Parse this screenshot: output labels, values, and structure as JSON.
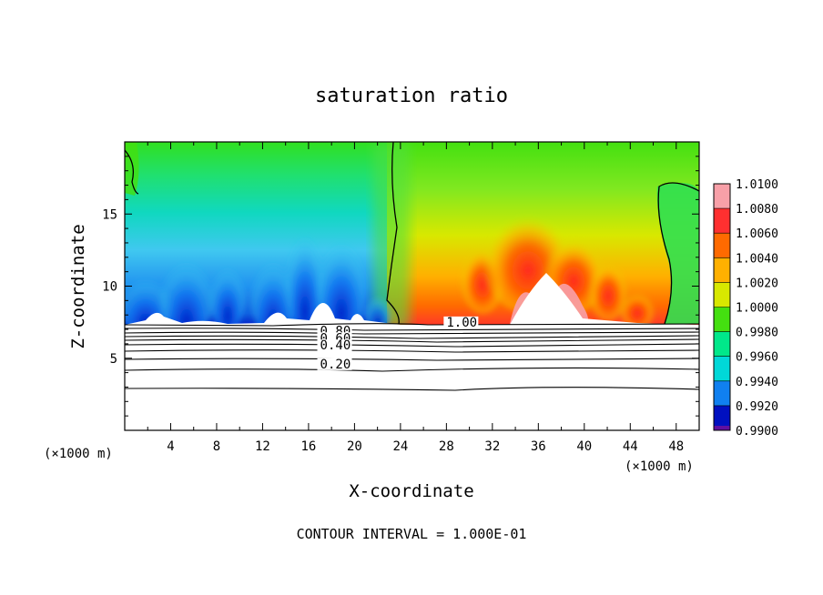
{
  "chart_data": {
    "type": "heatmap",
    "title": "saturation ratio",
    "xlabel": "X-coordinate",
    "ylabel": "Z-coordinate",
    "x_unit_left": "(×1000 m)",
    "x_unit_right": "(×1000 m)",
    "xlim": [
      0,
      50
    ],
    "ylim": [
      0,
      20
    ],
    "x_ticks": [
      4,
      8,
      12,
      16,
      20,
      24,
      28,
      32,
      36,
      40,
      44,
      48
    ],
    "y_ticks": [
      5,
      10,
      15
    ],
    "footer": "CONTOUR INTERVAL = 1.000E-01",
    "colorbar": {
      "levels": [
        "1.0100",
        "1.0080",
        "1.0060",
        "1.0040",
        "1.0020",
        "1.0000",
        "0.9980",
        "0.9960",
        "0.9940",
        "0.9920",
        "0.9900"
      ],
      "colors": [
        "#f8a0a8",
        "#ff3030",
        "#ff6a00",
        "#ffb000",
        "#d8e800",
        "#44e010",
        "#00e88a",
        "#00d8d8",
        "#1080f0",
        "#0010c0",
        "#6010a0"
      ]
    },
    "contour_labels": [
      {
        "text": "0.80",
        "x": 17.0,
        "y": 6.6
      },
      {
        "text": "0.60",
        "x": 17.0,
        "y": 6.1
      },
      {
        "text": "0.40",
        "x": 17.0,
        "y": 5.6
      },
      {
        "text": "0.20",
        "x": 17.0,
        "y": 4.3
      },
      {
        "text": "1.00",
        "x": 28.0,
        "y": 7.2
      }
    ]
  }
}
